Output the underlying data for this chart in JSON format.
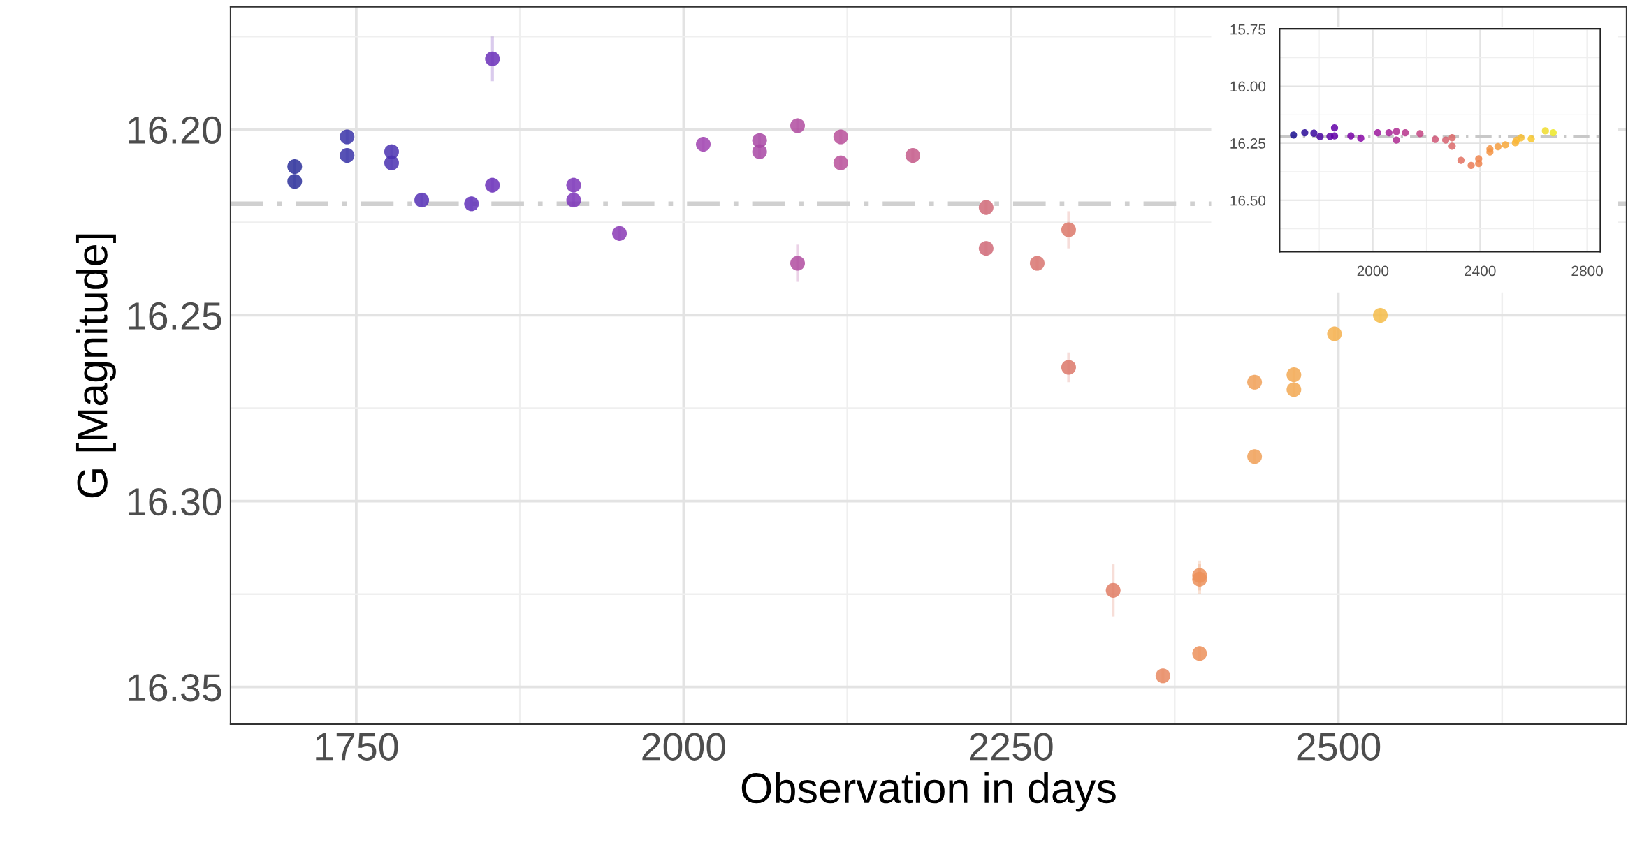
{
  "chart_data": [
    {
      "type": "scatter",
      "xlabel": "Observation in days",
      "ylabel": "G [Magnitude]",
      "x": [
        1703,
        1703,
        1743,
        1743,
        1777,
        1777,
        1800,
        1838,
        1854,
        1854,
        1916,
        1916,
        1951,
        2015,
        2058,
        2058,
        2087,
        2087,
        2120,
        2120,
        2175,
        2231,
        2231,
        2270,
        2294,
        2294,
        2328,
        2366,
        2394,
        2394,
        2394,
        2436,
        2436,
        2466,
        2466,
        2497,
        2532
      ],
      "values": [
        16.21,
        16.214,
        16.202,
        16.207,
        16.206,
        16.209,
        16.219,
        16.22,
        16.181,
        16.215,
        16.215,
        16.219,
        16.228,
        16.204,
        16.203,
        16.206,
        16.199,
        16.236,
        16.202,
        16.209,
        16.207,
        16.221,
        16.232,
        16.236,
        16.227,
        16.264,
        16.324,
        16.347,
        16.32,
        16.321,
        16.341,
        16.268,
        16.288,
        16.266,
        16.27,
        16.255,
        16.25
      ],
      "errors": [
        0.002,
        0.002,
        0.002,
        0.002,
        0.002,
        0.002,
        0.002,
        0.002,
        0.006,
        0.002,
        0.002,
        0.002,
        0.002,
        0.002,
        0.002,
        0.002,
        0.002,
        0.005,
        0.002,
        0.002,
        0.002,
        0.002,
        0.002,
        0.002,
        0.005,
        0.004,
        0.007,
        0.002,
        0.004,
        0.004,
        0.002,
        0.002,
        0.002,
        0.002,
        0.002,
        0.002,
        0.002
      ],
      "colors": [
        "#2b2f9a",
        "#2b2f9a",
        "#3a34a8",
        "#3a34a8",
        "#4a31b0",
        "#4a31b0",
        "#5530b5",
        "#6030b8",
        "#6a2fb8",
        "#6a2fb8",
        "#7d35b8",
        "#7d35b8",
        "#8a3ab5",
        "#a042b0",
        "#a848a5",
        "#a848a5",
        "#b04ca0",
        "#b04ca0",
        "#b8509a",
        "#b8509a",
        "#c45a8a",
        "#d06a78",
        "#d06a78",
        "#d87470",
        "#dc786a",
        "#dc786a",
        "#e07c64",
        "#e88860",
        "#ec905a",
        "#ec905a",
        "#ec905a",
        "#f0a058",
        "#f0a058",
        "#f2a852",
        "#f2a852",
        "#f4b04e",
        "#f5bc4a"
      ],
      "xlim": [
        1654,
        2720
      ],
      "ylim": [
        16.36,
        16.167
      ],
      "xticks": [
        1750,
        2000,
        2250,
        2500
      ],
      "yticks": [
        {
          "value": 16.2,
          "label": "16.20"
        },
        {
          "value": 16.25,
          "label": "16.25"
        },
        {
          "value": 16.3,
          "label": "16.30"
        },
        {
          "value": 16.35,
          "label": "16.35"
        }
      ],
      "ref_lines": [
        {
          "axis": "y",
          "value": 16.22,
          "color": "#d0d0d0",
          "line_style": "dashed"
        }
      ],
      "grid": true,
      "marker": "circle"
    },
    {
      "type": "scatter",
      "x": [
        1704,
        1746,
        1780,
        1803,
        1840,
        1857,
        1857,
        1918,
        1955,
        2018,
        2060,
        2088,
        2088,
        2121,
        2176,
        2233,
        2272,
        2296,
        2296,
        2329,
        2367,
        2395,
        2395,
        2437,
        2437,
        2467,
        2495,
        2532,
        2537,
        2553,
        2591,
        2644,
        2673
      ],
      "values": [
        16.214,
        16.204,
        16.206,
        16.221,
        16.22,
        16.183,
        16.218,
        16.218,
        16.228,
        16.204,
        16.204,
        16.199,
        16.236,
        16.204,
        16.208,
        16.233,
        16.236,
        16.226,
        16.263,
        16.325,
        16.347,
        16.318,
        16.339,
        16.275,
        16.288,
        16.265,
        16.257,
        16.248,
        16.236,
        16.226,
        16.231,
        16.196,
        16.204
      ],
      "colors": [
        "#1a0f90",
        "#2a0a98",
        "#3a06a0",
        "#4a04a2",
        "#5a02a6",
        "#6200a8",
        "#6200a8",
        "#7a04a8",
        "#8808a6",
        "#9c179e",
        "#a62098",
        "#ae2a92",
        "#ae2a92",
        "#b6348b",
        "#c44482",
        "#cf5576",
        "#d6606e",
        "#da6868",
        "#da6868",
        "#e27060",
        "#ea7a55",
        "#ee844e",
        "#ee844e",
        "#f39444",
        "#f39444",
        "#f59e40",
        "#f7a83a",
        "#f9b436",
        "#f9b636",
        "#f8be32",
        "#f8c82e",
        "#f0dc2a",
        "#ece826"
      ],
      "xlim": [
        1652,
        2849
      ],
      "ylim": [
        16.726,
        15.748
      ],
      "xticks": [
        2000,
        2400,
        2800
      ],
      "yticks": [
        {
          "value": 15.75,
          "label": "15.75"
        },
        {
          "value": 16.0,
          "label": "16.00"
        },
        {
          "value": 16.25,
          "label": "16.25"
        },
        {
          "value": 16.5,
          "label": "16.50"
        }
      ],
      "ref_lines": [
        {
          "axis": "y",
          "value": 16.22,
          "color": "#c8c8c8",
          "line_style": "dashed"
        }
      ],
      "grid": true,
      "marker": "circle"
    }
  ]
}
